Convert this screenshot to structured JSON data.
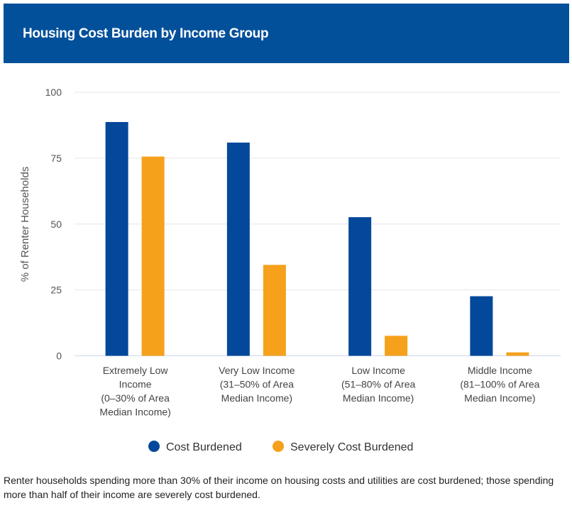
{
  "title": "Housing Cost Burden by Income Group",
  "note": "Renter households spending more than 30% of their income on housing costs and utilities are cost burdened; those spending more than half of their income are severely cost burdened.",
  "colors": {
    "header": "#03509a",
    "cost_burdened": "#03489a",
    "severely_cost_burdened": "#f5a11c"
  },
  "chart_data": {
    "type": "bar",
    "title": "Housing Cost Burden by Income Group",
    "ylabel": "% of Renter Households",
    "xlabel": "",
    "ylim": [
      0,
      100
    ],
    "yticks": [
      0,
      25,
      50,
      75,
      100
    ],
    "grid": true,
    "legend_placement": "bottom",
    "categories": [
      [
        "Extremely Low",
        "Income",
        "(0–30% of Area",
        "Median Income)"
      ],
      [
        "Very Low Income",
        "(31–50% of Area",
        "Median Income)"
      ],
      [
        "Low Income",
        "(51–80% of Area",
        "Median Income)"
      ],
      [
        "Middle Income",
        "(81–100% of Area",
        "Median Income)"
      ]
    ],
    "series": [
      {
        "name": "Cost Burdened",
        "color": "#03489a",
        "values": [
          88.7,
          80.9,
          52.6,
          22.6
        ]
      },
      {
        "name": "Severely Cost Burdened",
        "color": "#f5a11c",
        "values": [
          75.6,
          34.5,
          7.6,
          1.3
        ]
      }
    ]
  }
}
